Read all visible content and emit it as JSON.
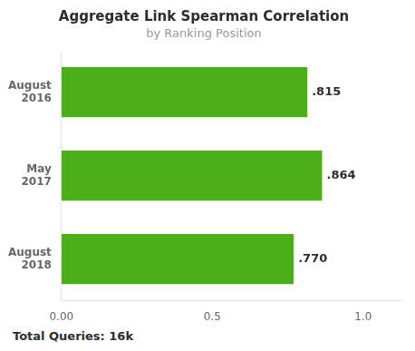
{
  "chart_data": {
    "type": "bar",
    "orientation": "horizontal",
    "title": "Aggregate Link Spearman Correlation",
    "subtitle": "by Ranking Position",
    "footer": "Total Queries: 16k",
    "categories": [
      "August\n2016",
      "May\n2017",
      "August\n2018"
    ],
    "values": [
      0.815,
      0.864,
      0.77
    ],
    "value_labels": [
      ".815",
      ".864",
      ".770"
    ],
    "data_labels": true,
    "color": "#4caf1a",
    "xlim": [
      0,
      1.13
    ],
    "xticks": [
      {
        "value": 0,
        "label": "0.00"
      },
      0.5,
      {
        "value": 1,
        "label": "1.0"
      }
    ],
    "grid": false
  }
}
